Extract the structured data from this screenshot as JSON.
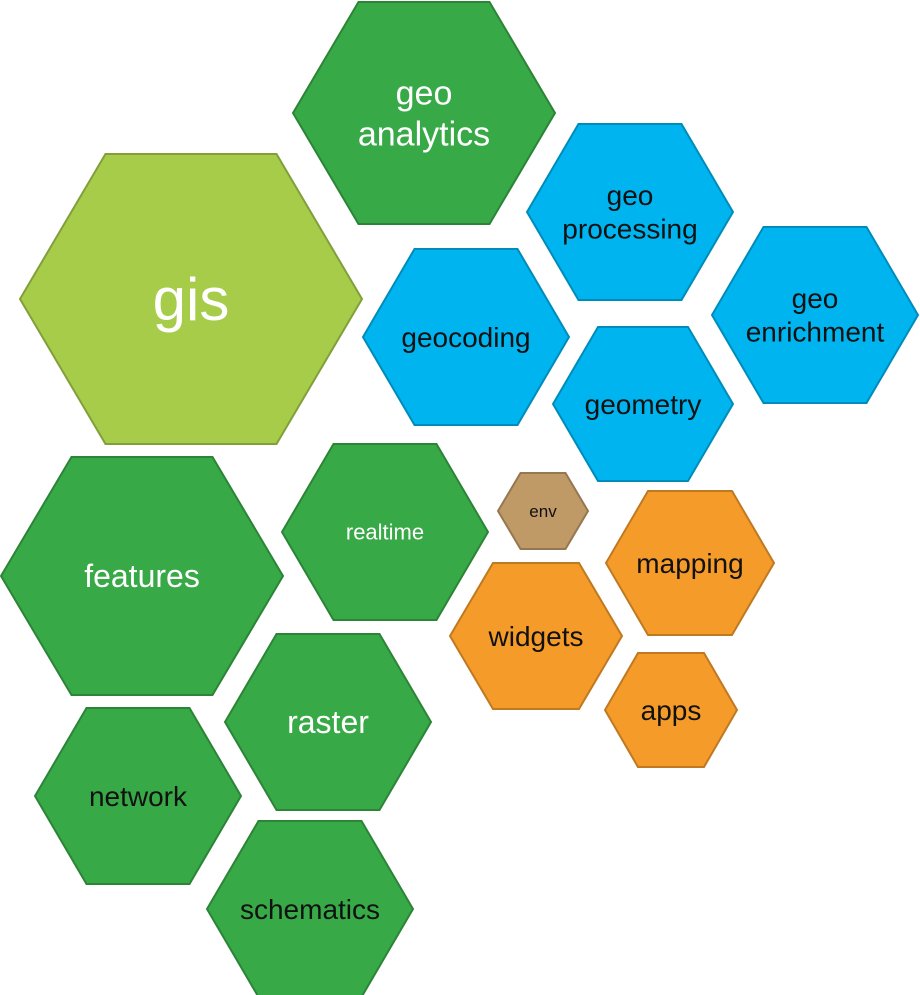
{
  "colors": {
    "gis": "#a6cc4a",
    "green": "#38a947",
    "blue": "#00b4ef",
    "orange": "#f59b2a",
    "tan": "#bf9966",
    "white_text": "#ffffff",
    "dark_text": "#111111"
  },
  "tiles": [
    {
      "id": "gis",
      "label": "gis",
      "color": "gis",
      "text_color": "white_text"
    },
    {
      "id": "geo-analytics",
      "label": "geo\nanalytics",
      "color": "green",
      "text_color": "white_text"
    },
    {
      "id": "geo-processing",
      "label": "geo\nprocessing",
      "color": "blue",
      "text_color": "dark_text"
    },
    {
      "id": "geo-enrichment",
      "label": "geo\nenrichment",
      "color": "blue",
      "text_color": "dark_text"
    },
    {
      "id": "geocoding",
      "label": "geocoding",
      "color": "blue",
      "text_color": "dark_text"
    },
    {
      "id": "geometry",
      "label": "geometry",
      "color": "blue",
      "text_color": "dark_text"
    },
    {
      "id": "env",
      "label": "env",
      "color": "tan",
      "text_color": "dark_text"
    },
    {
      "id": "realtime",
      "label": "realtime",
      "color": "green",
      "text_color": "white_text"
    },
    {
      "id": "features",
      "label": "features",
      "color": "green",
      "text_color": "white_text"
    },
    {
      "id": "mapping",
      "label": "mapping",
      "color": "orange",
      "text_color": "dark_text"
    },
    {
      "id": "widgets",
      "label": "widgets",
      "color": "orange",
      "text_color": "dark_text"
    },
    {
      "id": "apps",
      "label": "apps",
      "color": "orange",
      "text_color": "dark_text"
    },
    {
      "id": "raster",
      "label": "raster",
      "color": "green",
      "text_color": "white_text"
    },
    {
      "id": "network",
      "label": "network",
      "color": "green",
      "text_color": "dark_text"
    },
    {
      "id": "schematics",
      "label": "schematics",
      "color": "green",
      "text_color": "dark_text"
    }
  ]
}
